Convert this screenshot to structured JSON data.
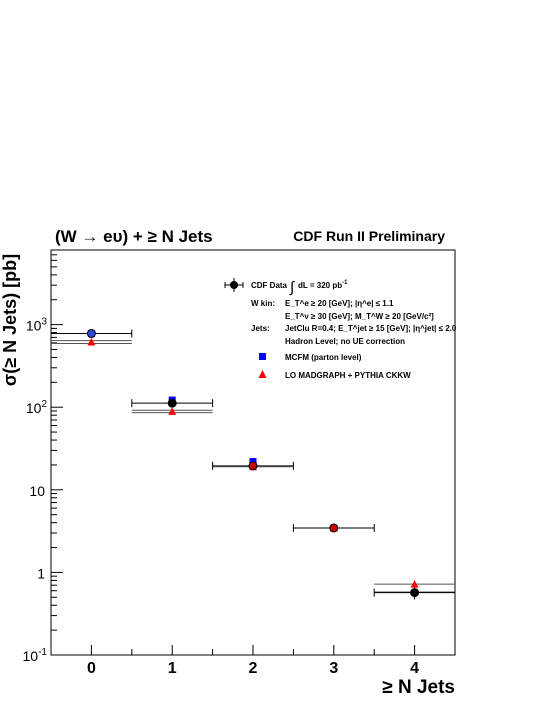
{
  "chart_data": {
    "type": "scatter",
    "title": "(W → eυ) + ≥ N Jets",
    "subtitle": "CDF Run II Preliminary",
    "xlabel": "≥ N Jets",
    "ylabel": "σ(≥ N Jets) [pb]",
    "categories": [
      "0",
      "1",
      "2",
      "3",
      "4"
    ],
    "x": [
      0,
      1,
      2,
      3,
      4
    ],
    "xlim": [
      -0.5,
      4.5
    ],
    "ylim": [
      0.1,
      8000
    ],
    "yscale": "log",
    "ytick_labels": [
      {
        "value": 0.1,
        "main": "10",
        "exp": "-1"
      },
      {
        "value": 1,
        "main": "1",
        "exp": ""
      },
      {
        "value": 10,
        "main": "10",
        "exp": ""
      },
      {
        "value": 100,
        "main": "10",
        "exp": "2"
      },
      {
        "value": 1000,
        "main": "10",
        "exp": "3"
      }
    ],
    "series": [
      {
        "name": "CDF Data",
        "marker": "circle",
        "color": "#000000",
        "values": [
          780,
          112,
          19.5,
          3.45,
          0.57
        ],
        "yerr_low": [
          740,
          104,
          18.0,
          3.2,
          0.47
        ],
        "yerr_high": [
          820,
          120,
          21.0,
          3.7,
          0.68
        ]
      },
      {
        "name": "MCFM (parton level)",
        "marker": "square",
        "color": "#0000ff",
        "values": [
          780,
          122,
          22.0,
          null,
          null
        ]
      },
      {
        "name": "LO MADGRAPH + PYTHIA CKKW",
        "marker": "triangle",
        "color": "#ff0000",
        "values": [
          615,
          89,
          19.0,
          3.45,
          0.72
        ],
        "band": [
          640,
          92,
          19.0,
          3.45,
          0.72
        ],
        "band_low": [
          590,
          86,
          19.0,
          3.45,
          0.58
        ]
      }
    ],
    "legend": {
      "placement": "top-right",
      "data_label": "CDF Data",
      "lumi_prefix": "dL = 320 pb",
      "lumi_exp": "-1",
      "cuts": [
        {
          "head": "W kin:",
          "text": "E_T^e ≥ 20 [GeV]; |η^e| ≤ 1.1"
        },
        {
          "head": "",
          "text": "E_T^ν ≥ 30 [GeV]; M_T^W ≥ 20 [GeV/c²]"
        },
        {
          "head": "Jets:",
          "text": "JetClu R=0.4; E_T^jet ≥ 15 [GeV]; |η^jet| ≤ 2.0"
        },
        {
          "head": "",
          "text": "Hadron Level; no UE correction"
        }
      ],
      "mcfm_label": "MCFM (parton level)",
      "lo_label": "LO MADGRAPH + PYTHIA CKKW"
    }
  }
}
